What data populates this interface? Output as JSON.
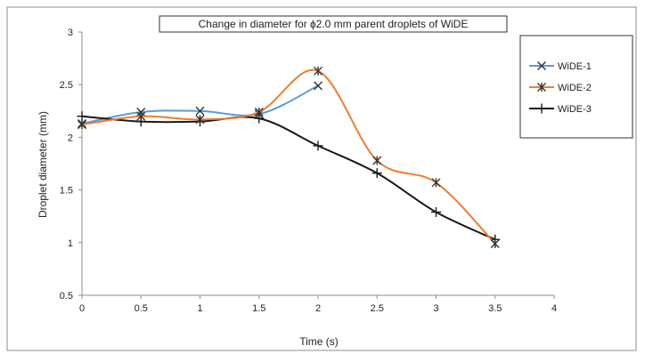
{
  "chart_data": {
    "type": "line",
    "title": "Change in diameter for ɸ2.0 mm parent droplets of  WiDE",
    "xlabel": "Time (s)",
    "ylabel": "Droplet diameter (mm)",
    "xlim": [
      0,
      4
    ],
    "ylim": [
      0.5,
      3
    ],
    "x_ticks": [
      "0",
      "0.5",
      "1",
      "1.5",
      "2",
      "2.5",
      "3",
      "3.5",
      "4"
    ],
    "y_ticks": [
      "0.5",
      "1",
      "1.5",
      "2",
      "2.5",
      "3"
    ],
    "grid": false,
    "legend_position": "right",
    "series": [
      {
        "name": "WiDE-1",
        "color": "#5b9bd5",
        "marker": "x",
        "x": [
          0,
          0.5,
          1,
          1.5,
          2
        ],
        "y": [
          2.13,
          2.24,
          2.25,
          2.22,
          2.49
        ]
      },
      {
        "name": "WiDE-2",
        "color": "#ed7d31",
        "marker": "asterisk",
        "x": [
          0,
          0.5,
          1,
          1.5,
          2,
          2.5,
          3,
          3.5
        ],
        "y": [
          2.12,
          2.2,
          2.17,
          2.24,
          2.63,
          1.78,
          1.57,
          0.99
        ]
      },
      {
        "name": "WiDE-3",
        "color": "#1a1a1a",
        "marker": "plus",
        "x": [
          0,
          0.5,
          1,
          1.5,
          2,
          2.5,
          3,
          3.5
        ],
        "y": [
          2.2,
          2.15,
          2.15,
          2.18,
          1.92,
          1.66,
          1.29,
          1.03
        ]
      }
    ]
  }
}
